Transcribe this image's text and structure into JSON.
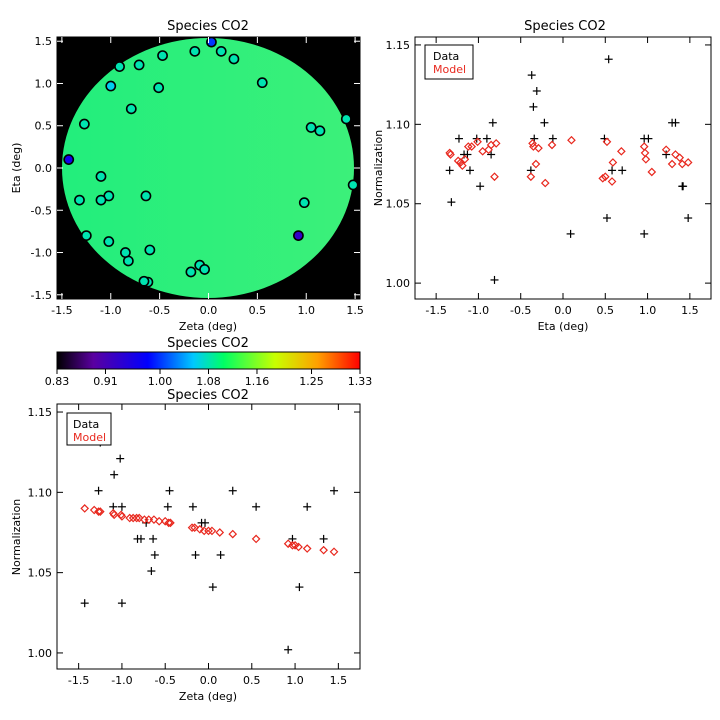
{
  "chart_data": [
    {
      "type": "scatter",
      "title": "Species CO2",
      "xlabel": "Zeta (deg)",
      "ylabel": "Eta (deg)",
      "xlim": [
        -1.55,
        1.55
      ],
      "ylim": [
        -1.55,
        1.55
      ],
      "xticks": [
        "-1.5",
        "-1.0",
        "-0.5",
        "0.0",
        "0.5",
        "1.0",
        "1.5"
      ],
      "yticks": [
        "-1.5",
        "-1.0",
        "-0.5",
        "0.0",
        "0.5",
        "1.0",
        "1.5"
      ],
      "background": "#000000",
      "field_radius": 1.5,
      "field_color": "#2ef07a",
      "points": [
        {
          "x": 0.03,
          "y": 1.49,
          "v": 1.0
        },
        {
          "x": -0.47,
          "y": 1.33,
          "v": 1.08
        },
        {
          "x": -0.14,
          "y": 1.38,
          "v": 1.08
        },
        {
          "x": 0.13,
          "y": 1.38,
          "v": 1.08
        },
        {
          "x": 0.26,
          "y": 1.29,
          "v": 1.08
        },
        {
          "x": -0.71,
          "y": 1.22,
          "v": 1.08
        },
        {
          "x": -0.91,
          "y": 1.2,
          "v": 1.08
        },
        {
          "x": -1.0,
          "y": 0.97,
          "v": 1.06
        },
        {
          "x": -0.51,
          "y": 0.95,
          "v": 1.08
        },
        {
          "x": 0.55,
          "y": 1.01,
          "v": 1.08
        },
        {
          "x": -0.79,
          "y": 0.7,
          "v": 1.08
        },
        {
          "x": -1.27,
          "y": 0.52,
          "v": 1.08
        },
        {
          "x": 1.05,
          "y": 0.48,
          "v": 1.08
        },
        {
          "x": 1.14,
          "y": 0.44,
          "v": 1.08
        },
        {
          "x": 1.41,
          "y": 0.58,
          "v": 1.08
        },
        {
          "x": -1.43,
          "y": 0.1,
          "v": 0.96
        },
        {
          "x": -1.1,
          "y": -0.1,
          "v": 1.08
        },
        {
          "x": -1.02,
          "y": -0.33,
          "v": 1.08
        },
        {
          "x": -1.1,
          "y": -0.38,
          "v": 1.08
        },
        {
          "x": -1.32,
          "y": -0.38,
          "v": 1.08
        },
        {
          "x": -0.64,
          "y": -0.33,
          "v": 1.08
        },
        {
          "x": 1.48,
          "y": -0.2,
          "v": 1.08
        },
        {
          "x": 0.98,
          "y": -0.41,
          "v": 1.08
        },
        {
          "x": -1.02,
          "y": -0.87,
          "v": 1.08
        },
        {
          "x": -1.25,
          "y": -0.8,
          "v": 1.08
        },
        {
          "x": -0.6,
          "y": -0.97,
          "v": 1.08
        },
        {
          "x": -0.82,
          "y": -1.1,
          "v": 1.08
        },
        {
          "x": -0.85,
          "y": -1.0,
          "v": 1.08
        },
        {
          "x": 0.92,
          "y": -0.8,
          "v": 0.93
        },
        {
          "x": -0.09,
          "y": -1.15,
          "v": 1.08
        },
        {
          "x": -0.04,
          "y": -1.2,
          "v": 1.08
        },
        {
          "x": -0.18,
          "y": -1.23,
          "v": 1.08
        },
        {
          "x": -0.62,
          "y": -1.35,
          "v": 1.08
        },
        {
          "x": -0.66,
          "y": -1.34,
          "v": 1.08
        }
      ]
    },
    {
      "type": "scatter",
      "title": "Species CO2",
      "xlabel": "Eta (deg)",
      "ylabel": "Normalization",
      "xlim": [
        -1.75,
        1.75
      ],
      "ylim": [
        0.99,
        1.155
      ],
      "xticks": [
        "-1.5",
        "-1.0",
        "-0.5",
        "0.0",
        "0.5",
        "1.0",
        "1.5"
      ],
      "yticks": [
        "1.00",
        "1.05",
        "1.10",
        "1.15"
      ],
      "legend": {
        "location": "top-left",
        "entries": [
          "Data",
          "Model"
        ]
      },
      "series": [
        {
          "name": "Data",
          "marker": "plus",
          "color": "#000000",
          "points": [
            [
              -1.32,
              1.051
            ],
            [
              -1.34,
              1.071
            ],
            [
              -1.23,
              1.091
            ],
            [
              -1.17,
              1.081
            ],
            [
              -1.13,
              1.081
            ],
            [
              -1.1,
              1.071
            ],
            [
              -1.02,
              1.091
            ],
            [
              -0.98,
              1.061
            ],
            [
              -0.9,
              1.091
            ],
            [
              -0.85,
              1.081
            ],
            [
              -0.83,
              1.101
            ],
            [
              -0.81,
              1.002
            ],
            [
              -0.38,
              1.071
            ],
            [
              -0.37,
              1.131
            ],
            [
              -0.35,
              1.111
            ],
            [
              -0.34,
              1.091
            ],
            [
              -0.31,
              1.121
            ],
            [
              -0.22,
              1.101
            ],
            [
              -0.12,
              1.091
            ],
            [
              0.09,
              1.031
            ],
            [
              0.49,
              1.091
            ],
            [
              0.52,
              1.041
            ],
            [
              0.54,
              1.141
            ],
            [
              0.58,
              1.071
            ],
            [
              0.7,
              1.071
            ],
            [
              0.96,
              1.031
            ],
            [
              0.96,
              1.091
            ],
            [
              1.01,
              1.091
            ],
            [
              1.22,
              1.081
            ],
            [
              1.29,
              1.101
            ],
            [
              1.33,
              1.101
            ],
            [
              1.41,
              1.061
            ],
            [
              1.42,
              1.061
            ],
            [
              1.48,
              1.041
            ]
          ]
        },
        {
          "name": "Model",
          "marker": "diamond",
          "color": "#e8281e",
          "points": [
            [
              -1.34,
              1.082
            ],
            [
              -1.33,
              1.081
            ],
            [
              -1.24,
              1.077
            ],
            [
              -1.21,
              1.076
            ],
            [
              -1.19,
              1.074
            ],
            [
              -1.16,
              1.078
            ],
            [
              -1.12,
              1.086
            ],
            [
              -1.08,
              1.086
            ],
            [
              -1.01,
              1.089
            ],
            [
              -0.95,
              1.083
            ],
            [
              -0.88,
              1.084
            ],
            [
              -0.85,
              1.087
            ],
            [
              -0.81,
              1.067
            ],
            [
              -0.79,
              1.088
            ],
            [
              -0.38,
              1.067
            ],
            [
              -0.36,
              1.088
            ],
            [
              -0.35,
              1.086
            ],
            [
              -0.32,
              1.075
            ],
            [
              -0.29,
              1.085
            ],
            [
              -0.21,
              1.063
            ],
            [
              -0.13,
              1.087
            ],
            [
              0.1,
              1.09
            ],
            [
              0.47,
              1.066
            ],
            [
              0.5,
              1.067
            ],
            [
              0.52,
              1.089
            ],
            [
              0.58,
              1.064
            ],
            [
              0.59,
              1.076
            ],
            [
              0.69,
              1.083
            ],
            [
              0.96,
              1.086
            ],
            [
              0.97,
              1.082
            ],
            [
              0.98,
              1.078
            ],
            [
              1.05,
              1.07
            ],
            [
              1.22,
              1.084
            ],
            [
              1.29,
              1.075
            ],
            [
              1.33,
              1.081
            ],
            [
              1.38,
              1.079
            ],
            [
              1.41,
              1.075
            ],
            [
              1.48,
              1.076
            ]
          ]
        }
      ]
    },
    {
      "type": "colorbar",
      "title": "Species CO2",
      "ticks": [
        "0.83",
        "0.91",
        "1.00",
        "1.08",
        "1.16",
        "1.25",
        "1.33"
      ],
      "range": [
        0.83,
        1.33
      ],
      "colormap": [
        "#000000",
        "#5a00a0",
        "#0000ff",
        "#00c8ff",
        "#00ff64",
        "#c8ff00",
        "#ffa000",
        "#ff0000"
      ]
    },
    {
      "type": "scatter",
      "title": "Species CO2",
      "xlabel": "Zeta (deg)",
      "ylabel": "Normalization",
      "xlim": [
        -1.75,
        1.75
      ],
      "ylim": [
        0.99,
        1.155
      ],
      "xticks": [
        "-1.5",
        "-1.0",
        "-0.5",
        "0.0",
        "0.5",
        "1.0",
        "1.5"
      ],
      "yticks": [
        "1.00",
        "1.05",
        "1.10",
        "1.15"
      ],
      "legend": {
        "location": "top-left",
        "entries": [
          "Data",
          "Model"
        ]
      },
      "series": [
        {
          "name": "Data",
          "marker": "plus",
          "color": "#000000",
          "points": [
            [
              -1.43,
              1.031
            ],
            [
              -1.27,
              1.101
            ],
            [
              -1.25,
              1.141
            ],
            [
              -1.25,
              1.131
            ],
            [
              -1.1,
              1.091
            ],
            [
              -1.09,
              1.111
            ],
            [
              -1.02,
              1.121
            ],
            [
              -1.0,
              1.091
            ],
            [
              -1.0,
              1.031
            ],
            [
              -0.82,
              1.071
            ],
            [
              -0.78,
              1.071
            ],
            [
              -0.72,
              1.081
            ],
            [
              -0.66,
              1.051
            ],
            [
              -0.64,
              1.071
            ],
            [
              -0.62,
              1.061
            ],
            [
              -0.47,
              1.091
            ],
            [
              -0.45,
              1.101
            ],
            [
              -0.18,
              1.091
            ],
            [
              -0.15,
              1.061
            ],
            [
              -0.08,
              1.081
            ],
            [
              -0.04,
              1.081
            ],
            [
              0.05,
              1.041
            ],
            [
              0.14,
              1.061
            ],
            [
              0.28,
              1.101
            ],
            [
              0.55,
              1.091
            ],
            [
              0.92,
              1.002
            ],
            [
              0.97,
              1.071
            ],
            [
              1.05,
              1.041
            ],
            [
              1.14,
              1.091
            ],
            [
              1.33,
              1.071
            ],
            [
              1.45,
              1.101
            ]
          ]
        },
        {
          "name": "Model",
          "marker": "diamond",
          "color": "#e8281e",
          "points": [
            [
              -1.43,
              1.09
            ],
            [
              -1.32,
              1.089
            ],
            [
              -1.27,
              1.088
            ],
            [
              -1.25,
              1.088
            ],
            [
              -1.1,
              1.087
            ],
            [
              -1.09,
              1.086
            ],
            [
              -1.01,
              1.086
            ],
            [
              -1.0,
              1.085
            ],
            [
              -0.91,
              1.084
            ],
            [
              -0.87,
              1.084
            ],
            [
              -0.83,
              1.084
            ],
            [
              -0.8,
              1.084
            ],
            [
              -0.74,
              1.083
            ],
            [
              -0.69,
              1.083
            ],
            [
              -0.63,
              1.083
            ],
            [
              -0.57,
              1.082
            ],
            [
              -0.5,
              1.082
            ],
            [
              -0.46,
              1.081
            ],
            [
              -0.44,
              1.081
            ],
            [
              -0.19,
              1.078
            ],
            [
              -0.16,
              1.078
            ],
            [
              -0.1,
              1.077
            ],
            [
              -0.05,
              1.076
            ],
            [
              0.0,
              1.076
            ],
            [
              0.04,
              1.076
            ],
            [
              0.13,
              1.075
            ],
            [
              0.28,
              1.074
            ],
            [
              0.55,
              1.071
            ],
            [
              0.92,
              1.068
            ],
            [
              0.97,
              1.067
            ],
            [
              1.0,
              1.067
            ],
            [
              1.04,
              1.066
            ],
            [
              1.14,
              1.065
            ],
            [
              1.33,
              1.064
            ],
            [
              1.45,
              1.063
            ]
          ]
        }
      ]
    }
  ]
}
